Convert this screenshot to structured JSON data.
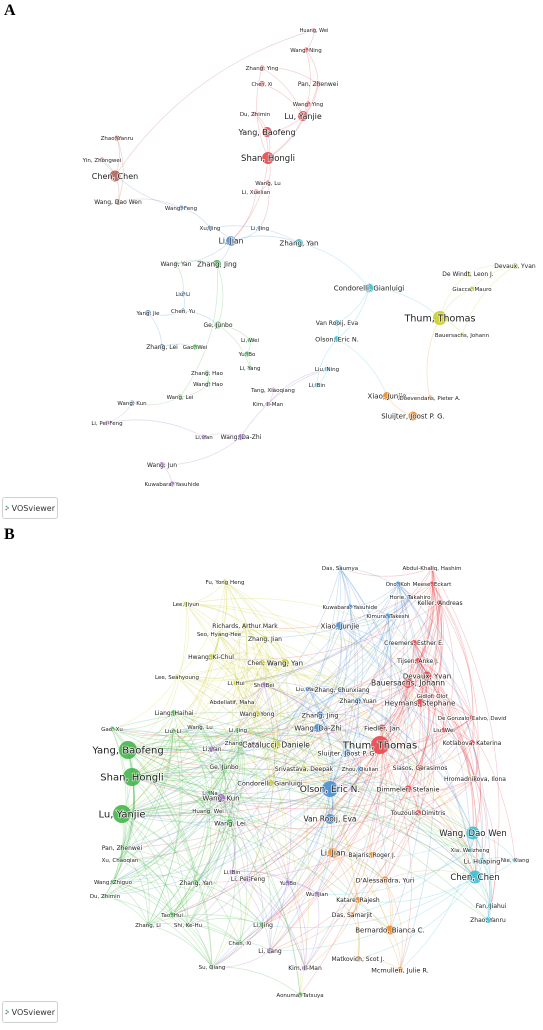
{
  "figure": {
    "panel_a_letter": "A",
    "panel_b_letter": "B",
    "logo_text": "VOSviewer"
  },
  "colors": {
    "red": "#e8474c",
    "green": "#43b649",
    "blue": "#4a8fd4",
    "yellow": "#c8cc2e",
    "purple": "#a267c9",
    "cyan": "#3dc1d6",
    "orange": "#f28a25",
    "brown": "#b5655a"
  },
  "panel_a": {
    "nodes": [
      {
        "label": "Huang, Wei",
        "color": "red"
      },
      {
        "label": "Wang, Ning",
        "color": "red"
      },
      {
        "label": "Zhang, Ying",
        "color": "red"
      },
      {
        "label": "Chen, Xi",
        "color": "red"
      },
      {
        "label": "Pan, Zhenwei",
        "color": "red"
      },
      {
        "label": "Wang, Ying",
        "color": "red"
      },
      {
        "label": "Du, Zhimin",
        "color": "red"
      },
      {
        "label": "Lu, Yanjie",
        "color": "red"
      },
      {
        "label": "Yang, Baofeng",
        "color": "red"
      },
      {
        "label": "Shan, Hongli",
        "color": "red"
      },
      {
        "label": "Wang, Lu",
        "color": "red"
      },
      {
        "label": "Li, Xuelian",
        "color": "red"
      },
      {
        "label": "Zhao, Yanru",
        "color": "brown"
      },
      {
        "label": "Yin, Zhongwei",
        "color": "brown"
      },
      {
        "label": "Chen, Chen",
        "color": "brown"
      },
      {
        "label": "Wang, Dao Wen",
        "color": "brown"
      },
      {
        "label": "Wang, Feng",
        "color": "blue"
      },
      {
        "label": "Xu, Jing",
        "color": "blue"
      },
      {
        "label": "Li, Jing",
        "color": "blue"
      },
      {
        "label": "Li, Jian",
        "color": "blue"
      },
      {
        "label": "Wang, Yan",
        "color": "green"
      },
      {
        "label": "Zhang, Jing",
        "color": "green"
      },
      {
        "label": "Zhang, Yan",
        "color": "cyan"
      },
      {
        "label": "Liu, Li",
        "color": "blue"
      },
      {
        "label": "Chen, Yu",
        "color": "blue"
      },
      {
        "label": "Yang, Jie",
        "color": "blue"
      },
      {
        "label": "Ge, Junbo",
        "color": "green"
      },
      {
        "label": "Zhang, Lei",
        "color": "blue"
      },
      {
        "label": "Gao, Wei",
        "color": "green"
      },
      {
        "label": "Li, Wei",
        "color": "green"
      },
      {
        "label": "Yu, Bo",
        "color": "green"
      },
      {
        "label": "Li, Yang",
        "color": "green"
      },
      {
        "label": "Zhang, Hao",
        "color": "green"
      },
      {
        "label": "Wang, Hao",
        "color": "green"
      },
      {
        "label": "Wang, Lei",
        "color": "green"
      },
      {
        "label": "Wang, Kun",
        "color": "blue"
      },
      {
        "label": "Li, Pei-Feng",
        "color": "purple"
      },
      {
        "label": "Li, Yan",
        "color": "purple"
      },
      {
        "label": "Wang, Da-Zhi",
        "color": "purple"
      },
      {
        "label": "Wang, Jun",
        "color": "purple"
      },
      {
        "label": "Kuwabara, Yasuhide",
        "color": "purple"
      },
      {
        "label": "Tang, Xiaoqiang",
        "color": "purple"
      },
      {
        "label": "Kim, Il-Man",
        "color": "purple"
      },
      {
        "label": "Liu, Ning",
        "color": "cyan"
      },
      {
        "label": "Li, Bin",
        "color": "cyan"
      },
      {
        "label": "Van Rooij, Eva",
        "color": "cyan"
      },
      {
        "label": "Olson, Eric N.",
        "color": "cyan"
      },
      {
        "label": "Condorelli, Gianluigi",
        "color": "cyan"
      },
      {
        "label": "Xiao, Junjie",
        "color": "orange"
      },
      {
        "label": "Doevendans, Pieter A.",
        "color": "orange"
      },
      {
        "label": "Sluijter, Joost P. G.",
        "color": "orange"
      },
      {
        "label": "Thum, Thomas",
        "color": "yellow"
      },
      {
        "label": "Bauersachs, Johann",
        "color": "yellow"
      },
      {
        "label": "De Windt, Leon J.",
        "color": "yellow"
      },
      {
        "label": "Giacca, Mauro",
        "color": "yellow"
      },
      {
        "label": "Devaux, Yvan",
        "color": "yellow"
      }
    ]
  },
  "panel_b": {
    "nodes": [
      {
        "label": "Abdul-Khaliq, Hashim",
        "color": "red"
      },
      {
        "label": "Meese, Eckart",
        "color": "red"
      },
      {
        "label": "Keller, Andreas",
        "color": "red"
      },
      {
        "label": "Das, Saumya",
        "color": "blue"
      },
      {
        "label": "Ono, Koh",
        "color": "blue"
      },
      {
        "label": "Horie, Takahiro",
        "color": "blue"
      },
      {
        "label": "Kuwabara, Yasuhide",
        "color": "blue"
      },
      {
        "label": "Kimura, Takeshi",
        "color": "blue"
      },
      {
        "label": "Fu, Yong Heng",
        "color": "yellow"
      },
      {
        "label": "Lee, Jiyun",
        "color": "yellow"
      },
      {
        "label": "Richards, Arthur Mark",
        "color": "yellow"
      },
      {
        "label": "Xiao, Junjie",
        "color": "blue"
      },
      {
        "label": "Seo, Hyang-Hee",
        "color": "yellow"
      },
      {
        "label": "Zhang, Jian",
        "color": "yellow"
      },
      {
        "label": "Creemers, Esther E.",
        "color": "red"
      },
      {
        "label": "Hwang, Ki-Chul",
        "color": "yellow"
      },
      {
        "label": "Chen, Tao",
        "color": "yellow"
      },
      {
        "label": "Wang, Yan",
        "color": "yellow"
      },
      {
        "label": "Tijsen, Anke J.",
        "color": "red"
      },
      {
        "label": "Devaux, Yvan",
        "color": "red"
      },
      {
        "label": "Lee, Seahyoung",
        "color": "yellow"
      },
      {
        "label": "Li, Hui",
        "color": "yellow"
      },
      {
        "label": "Shi, Bei",
        "color": "purple"
      },
      {
        "label": "Liu, Yang",
        "color": "blue"
      },
      {
        "label": "Zhang, Chunxiang",
        "color": "blue"
      },
      {
        "label": "Bauersachs, Johann",
        "color": "red"
      },
      {
        "label": "Gidlof, Olof",
        "color": "red"
      },
      {
        "label": "Zhang, Yuan",
        "color": "blue"
      },
      {
        "label": "Abdellatif, Maha",
        "color": "yellow"
      },
      {
        "label": "Heymans, Stephane",
        "color": "red"
      },
      {
        "label": "Liang, Haihai",
        "color": "green"
      },
      {
        "label": "Wang, Yong",
        "color": "yellow"
      },
      {
        "label": "Zhang, Jing",
        "color": "blue"
      },
      {
        "label": "De Gonzalo-Calvo, David",
        "color": "red"
      },
      {
        "label": "Wang, Lu",
        "color": "green"
      },
      {
        "label": "Li, Jing",
        "color": "green"
      },
      {
        "label": "Wang, Da-Zhi",
        "color": "blue"
      },
      {
        "label": "Fiedler, Jan",
        "color": "red"
      },
      {
        "label": "Liu, Wei",
        "color": "red"
      },
      {
        "label": "Gao, Xu",
        "color": "green"
      },
      {
        "label": "Liu, Li",
        "color": "green"
      },
      {
        "label": "Zhang, Lubo",
        "color": "green"
      },
      {
        "label": "Catalucci, Daniele",
        "color": "yellow"
      },
      {
        "label": "Thum, Thomas",
        "color": "red"
      },
      {
        "label": "Kotlabova, Katerina",
        "color": "red"
      },
      {
        "label": "Yang, Baofeng",
        "color": "green"
      },
      {
        "label": "Li, Yan",
        "color": "purple"
      },
      {
        "label": "Sluijter, Joost P. G.",
        "color": "blue"
      },
      {
        "label": "Siasos, Gerasimos",
        "color": "red"
      },
      {
        "label": "Ge, Junbo",
        "color": "green"
      },
      {
        "label": "Srivastava, Deepak",
        "color": "yellow"
      },
      {
        "label": "Zhou, Qiulian",
        "color": "blue"
      },
      {
        "label": "Hromadnikova, Ilona",
        "color": "red"
      },
      {
        "label": "Shan, Hongli",
        "color": "green"
      },
      {
        "label": "Condorelli, Gianluigi",
        "color": "yellow"
      },
      {
        "label": "Olson, Eric N.",
        "color": "blue"
      },
      {
        "label": "Dimmeler, Stefanie",
        "color": "red"
      },
      {
        "label": "Li, Na",
        "color": "green"
      },
      {
        "label": "Wang, Kun",
        "color": "purple"
      },
      {
        "label": "Lu, Yanjie",
        "color": "green"
      },
      {
        "label": "Huang, Wei",
        "color": "green"
      },
      {
        "label": "Wang, Lei",
        "color": "green"
      },
      {
        "label": "Van Rooij, Eva",
        "color": "blue"
      },
      {
        "label": "Touzoulis, Dimitris",
        "color": "red"
      },
      {
        "label": "Wang, Dao Wen",
        "color": "cyan"
      },
      {
        "label": "Pan, Zhenwei",
        "color": "green"
      },
      {
        "label": "Xu, Chaoqian",
        "color": "green"
      },
      {
        "label": "Li, Bin",
        "color": "purple"
      },
      {
        "label": "Li, Jian",
        "color": "orange"
      },
      {
        "label": "Bajaris, Roger J.",
        "color": "orange"
      },
      {
        "label": "Xia, Weizheng",
        "color": "cyan"
      },
      {
        "label": "Li, Huaping",
        "color": "cyan"
      },
      {
        "label": "Nie, Xiang",
        "color": "cyan"
      },
      {
        "label": "Wang, Zhiguo",
        "color": "green"
      },
      {
        "label": "Li, Pei-Feng",
        "color": "purple"
      },
      {
        "label": "Zhang, Yan",
        "color": "green"
      },
      {
        "label": "D'Alessandra, Yuri",
        "color": "orange"
      },
      {
        "label": "Chen, Chen",
        "color": "cyan"
      },
      {
        "label": "Du, Zhimin",
        "color": "green"
      },
      {
        "label": "Yu, Bo",
        "color": "purple"
      },
      {
        "label": "Wu, Jian",
        "color": "purple"
      },
      {
        "label": "Katare, Rajesh",
        "color": "orange"
      },
      {
        "label": "Fan, Jiahui",
        "color": "cyan"
      },
      {
        "label": "Tao, Hui",
        "color": "green"
      },
      {
        "label": "Zhao, Yanru",
        "color": "cyan"
      },
      {
        "label": "Zhang, Li",
        "color": "green"
      },
      {
        "label": "Shi, Ke-Hu",
        "color": "green"
      },
      {
        "label": "Li, Jing",
        "color": "green"
      },
      {
        "label": "Das, Samarjit",
        "color": "orange"
      },
      {
        "label": "Bernardo, Bianca C.",
        "color": "orange"
      },
      {
        "label": "Chen, Xi",
        "color": "green"
      },
      {
        "label": "Li, Lang",
        "color": "purple"
      },
      {
        "label": "Matkovich, Scot J.",
        "color": "orange"
      },
      {
        "label": "Mcmullen, Julie R.",
        "color": "orange"
      },
      {
        "label": "Su, Qiang",
        "color": "green"
      },
      {
        "label": "Kim, Il-Man",
        "color": "purple"
      },
      {
        "label": "Aonuma, Tatsuya",
        "color": "green"
      }
    ]
  }
}
